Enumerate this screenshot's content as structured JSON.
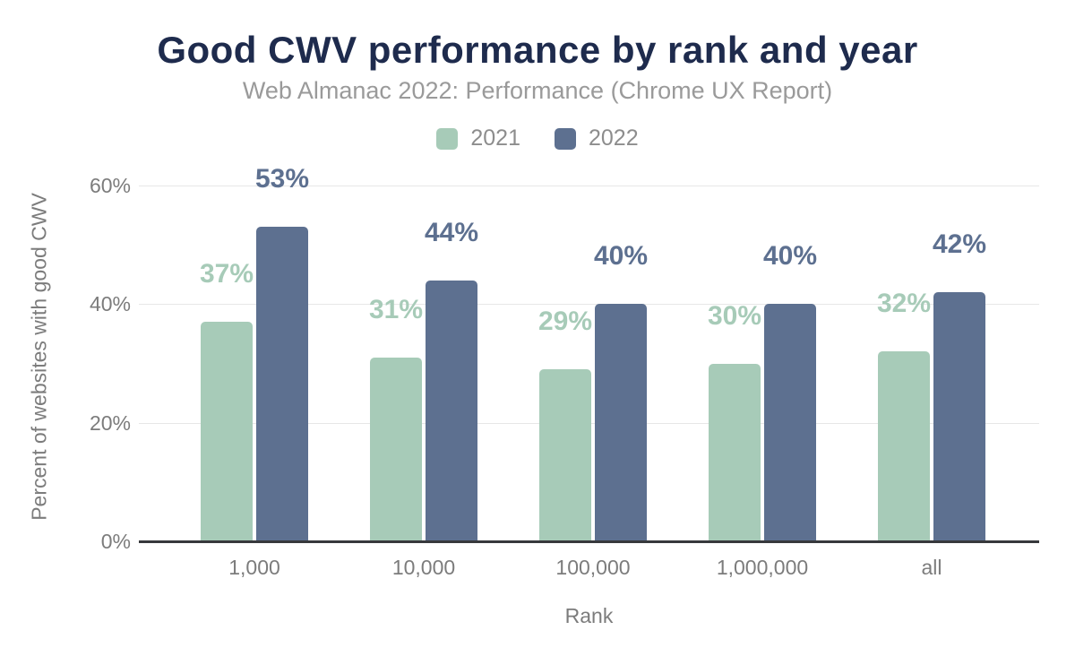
{
  "title": "Good CWV performance by rank and year",
  "subtitle": "Web Almanac 2022: Performance (Chrome UX Report)",
  "colors": {
    "series_2021": "#a7cbb8",
    "series_2022": "#5d7090",
    "title": "#1e2b4d",
    "subtitle": "#9a9a9a",
    "axis_text": "#7c7c7c",
    "gridline": "#e7e7e7",
    "baseline": "#37393c",
    "background": "#ffffff"
  },
  "legend": {
    "items": [
      {
        "label": "2021",
        "color": "#a7cbb8"
      },
      {
        "label": "2022",
        "color": "#5d7090"
      }
    ]
  },
  "chart_data": {
    "type": "bar",
    "categories": [
      "1,000",
      "10,000",
      "100,000",
      "1,000,000",
      "all"
    ],
    "series": [
      {
        "name": "2021",
        "color": "#a7cbb8",
        "values": [
          37,
          31,
          29,
          30,
          32
        ],
        "data_labels": [
          "37%",
          "31%",
          "29%",
          "30%",
          "32%"
        ]
      },
      {
        "name": "2022",
        "color": "#5d7090",
        "values": [
          53,
          44,
          40,
          40,
          42
        ],
        "data_labels": [
          "53%",
          "44%",
          "40%",
          "40%",
          "42%"
        ]
      }
    ],
    "xlabel": "Rank",
    "ylabel": "Percent of websites with good CWV",
    "yticks": [
      {
        "label": "0%",
        "value": 0
      },
      {
        "label": "20%",
        "value": 20
      },
      {
        "label": "40%",
        "value": 40
      },
      {
        "label": "60%",
        "value": 60
      }
    ],
    "ylim": [
      0,
      60
    ],
    "grid": true,
    "legend_position": "top",
    "data_labels_shown": true
  }
}
